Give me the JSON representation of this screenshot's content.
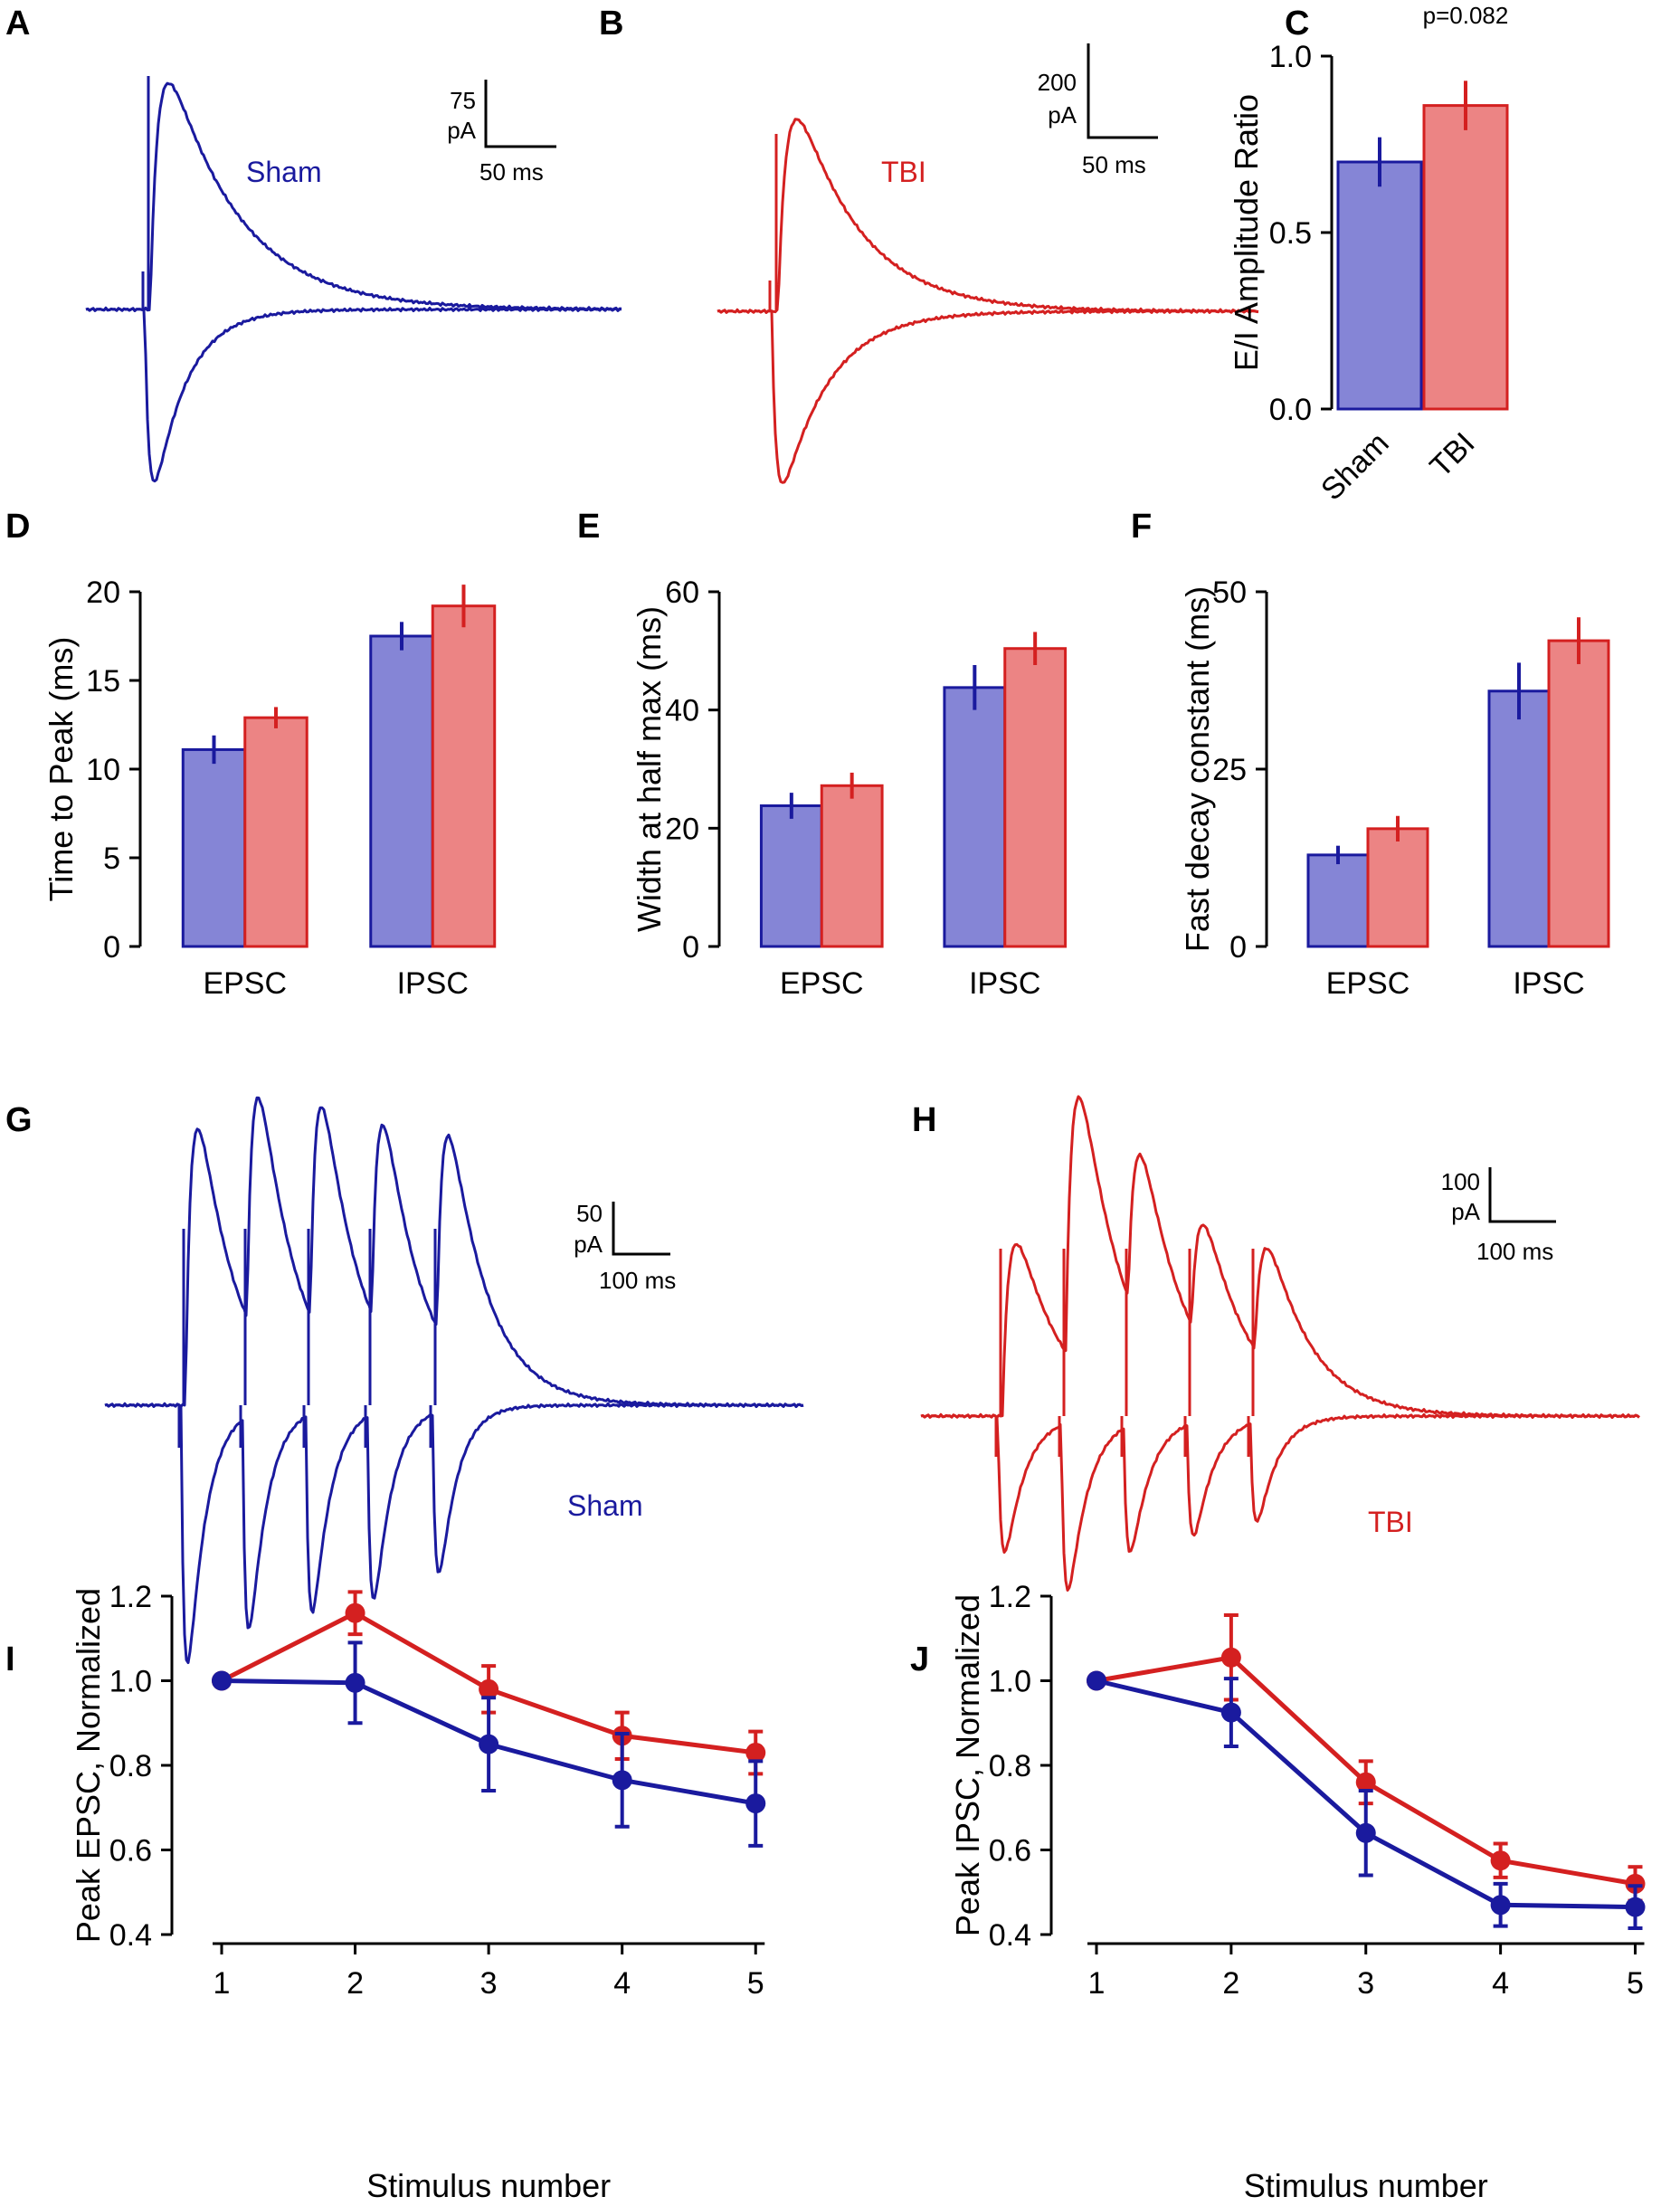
{
  "colors": {
    "sham": "#1a1a9e",
    "tbi": "#d42020",
    "sham_fill": "#8585d6",
    "tbi_fill": "#ec8484",
    "axis": "#000000"
  },
  "panels": {
    "A": {
      "letter": "A",
      "label": "Sham",
      "scale_y": [
        "75",
        "pA"
      ],
      "scale_x": "50 ms"
    },
    "B": {
      "letter": "B",
      "label": "TBI",
      "scale_y": [
        "200",
        "pA"
      ],
      "scale_x": "50 ms"
    },
    "C": {
      "letter": "C"
    },
    "D": {
      "letter": "D"
    },
    "E": {
      "letter": "E"
    },
    "F": {
      "letter": "F"
    },
    "G": {
      "letter": "G",
      "label": "Sham",
      "scale_y": [
        "50",
        "pA"
      ],
      "scale_x": "100 ms"
    },
    "H": {
      "letter": "H",
      "label": "TBI",
      "scale_y": [
        "100",
        "pA"
      ],
      "scale_x": "100 ms"
    },
    "I": {
      "letter": "I"
    },
    "J": {
      "letter": "J"
    }
  },
  "chart_data": [
    {
      "id": "C",
      "type": "bar",
      "categories": [
        "Sham",
        "TBI"
      ],
      "values": [
        0.7,
        0.86
      ],
      "errors": [
        0.07,
        0.07
      ],
      "ylabel": "E/I Amplitude Ratio",
      "ylim": [
        0,
        1.0
      ],
      "yticks": [
        "0.0",
        "0.5",
        "1.0"
      ],
      "yticks_values": [
        0,
        0.5,
        1.0
      ],
      "annotation": "p=0.082"
    },
    {
      "id": "D",
      "type": "bar",
      "categories": [
        "EPSC",
        "IPSC"
      ],
      "series": [
        {
          "name": "Sham",
          "values": [
            11.1,
            17.5
          ],
          "errors": [
            0.8,
            0.8
          ]
        },
        {
          "name": "TBI",
          "values": [
            12.9,
            19.2
          ],
          "errors": [
            0.6,
            1.2
          ]
        }
      ],
      "ylabel": "Time to Peak (ms)",
      "ylim": [
        0,
        20
      ],
      "yticks": [
        "0",
        "5",
        "10",
        "15",
        "20"
      ],
      "yticks_values": [
        0,
        5,
        10,
        15,
        20
      ]
    },
    {
      "id": "E",
      "type": "bar",
      "categories": [
        "EPSC",
        "IPSC"
      ],
      "series": [
        {
          "name": "Sham",
          "values": [
            23.8,
            43.8
          ],
          "errors": [
            2.2,
            3.8
          ]
        },
        {
          "name": "TBI",
          "values": [
            27.2,
            50.4
          ],
          "errors": [
            2.2,
            2.8
          ]
        }
      ],
      "ylabel": "Width at half max (ms)",
      "ylim": [
        0,
        60
      ],
      "yticks": [
        "0",
        "20",
        "40",
        "60"
      ],
      "yticks_values": [
        0,
        20,
        40,
        60
      ]
    },
    {
      "id": "F",
      "type": "bar",
      "categories": [
        "EPSC",
        "IPSC"
      ],
      "series": [
        {
          "name": "Sham",
          "values": [
            12.9,
            36.0
          ],
          "errors": [
            1.3,
            4.0
          ]
        },
        {
          "name": "TBI",
          "values": [
            16.6,
            43.1
          ],
          "errors": [
            1.8,
            3.3
          ]
        }
      ],
      "ylabel": "Fast decay constant (ms)",
      "ylim": [
        0,
        50
      ],
      "yticks": [
        "0",
        "25",
        "50"
      ],
      "yticks_values": [
        0,
        25,
        50
      ]
    },
    {
      "id": "I",
      "type": "line",
      "x": [
        1,
        2,
        3,
        4,
        5
      ],
      "series": [
        {
          "name": "Sham",
          "values": [
            1.0,
            0.995,
            0.85,
            0.765,
            0.71
          ],
          "errors": [
            0,
            0.095,
            0.11,
            0.11,
            0.1
          ]
        },
        {
          "name": "TBI",
          "values": [
            1.0,
            1.16,
            0.98,
            0.87,
            0.83
          ],
          "errors": [
            0,
            0.05,
            0.055,
            0.055,
            0.05
          ]
        }
      ],
      "xlabel": "Stimulus number",
      "ylabel": "Peak EPSC, Normalized",
      "xlim": [
        1,
        5
      ],
      "ylim": [
        0.4,
        1.2
      ],
      "xticks": [
        "1",
        "2",
        "3",
        "4",
        "5"
      ],
      "yticks": [
        "0.4",
        "0.6",
        "0.8",
        "1.0",
        "1.2"
      ],
      "yticks_values": [
        0.4,
        0.6,
        0.8,
        1.0,
        1.2
      ]
    },
    {
      "id": "J",
      "type": "line",
      "x": [
        1,
        2,
        3,
        4,
        5
      ],
      "series": [
        {
          "name": "Sham",
          "values": [
            1.0,
            0.925,
            0.64,
            0.47,
            0.465
          ],
          "errors": [
            0,
            0.08,
            0.1,
            0.05,
            0.05
          ]
        },
        {
          "name": "TBI",
          "values": [
            1.0,
            1.055,
            0.76,
            0.575,
            0.52
          ],
          "errors": [
            0,
            0.1,
            0.05,
            0.04,
            0.04
          ]
        }
      ],
      "xlabel": "Stimulus number",
      "ylabel": "Peak IPSC, Normalized",
      "xlim": [
        1,
        5
      ],
      "ylim": [
        0.4,
        1.2
      ],
      "xticks": [
        "1",
        "2",
        "3",
        "4",
        "5"
      ],
      "yticks": [
        "0.4",
        "0.6",
        "0.8",
        "1.0",
        "1.2"
      ],
      "yticks_values": [
        0.4,
        0.6,
        0.8,
        1.0,
        1.2
      ]
    }
  ],
  "traces": {
    "A": {
      "group": "Sham",
      "stimuli": 1,
      "epsc_peak_norm": 1.0,
      "ipsc_peak_norm": 1.0
    },
    "B": {
      "group": "TBI",
      "stimuli": 1,
      "epsc_peak_norm": 1.0,
      "ipsc_peak_norm": 1.0
    },
    "G": {
      "group": "Sham",
      "stimuli": 5,
      "epsc_peaks_norm": [
        1.0,
        0.92,
        0.88,
        0.79,
        0.79
      ],
      "ipsc_peaks_norm": [
        1.0,
        0.83,
        0.76,
        0.72,
        0.62
      ]
    },
    "H": {
      "group": "TBI",
      "stimuli": 5,
      "epsc_peaks_norm": [
        1.0,
        1.25,
        0.84,
        0.58,
        0.57
      ],
      "ipsc_peaks_norm": [
        1.0,
        1.22,
        0.9,
        0.8,
        0.72
      ]
    }
  }
}
